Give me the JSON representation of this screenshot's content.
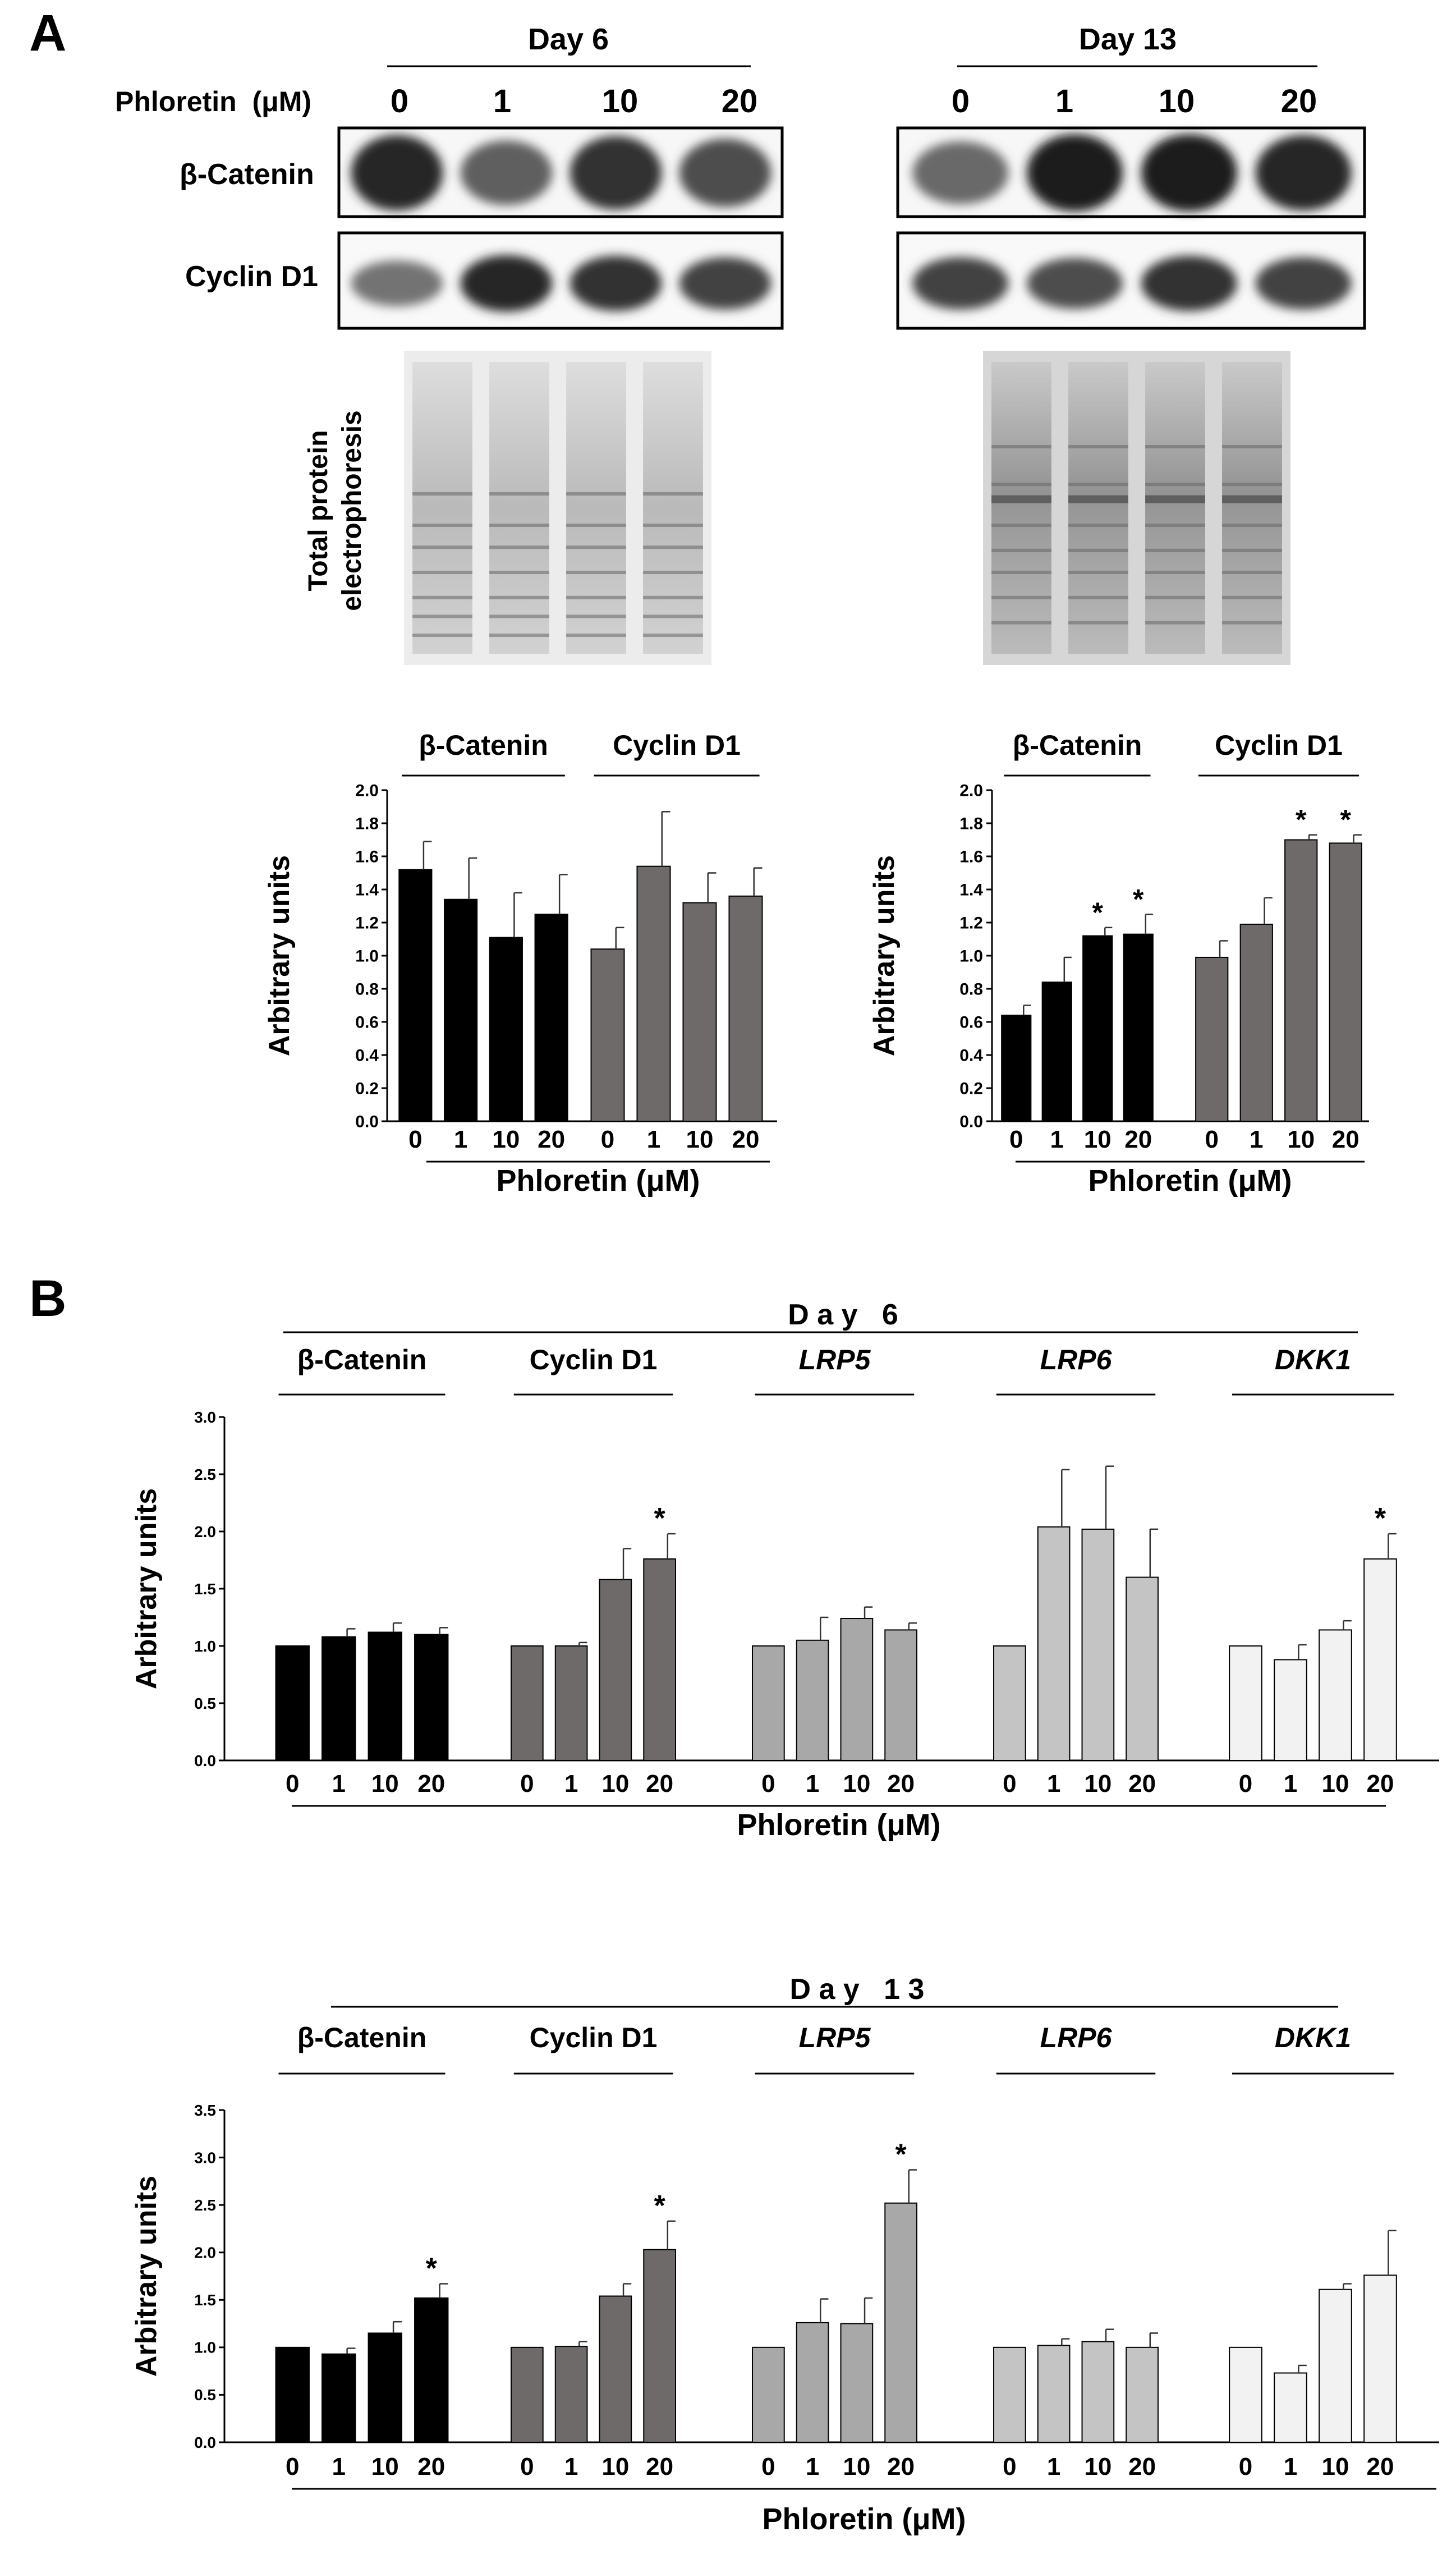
{
  "panel_a_label": "A",
  "panel_b_label": "B",
  "blots": {
    "day6_label": "Day 6",
    "day13_label": "Day 13",
    "treatment_label": "Phloretin  (μM)",
    "doses": [
      "0",
      "1",
      "10",
      "20"
    ],
    "rows": [
      "β-Catenin",
      "Cyclin D1"
    ],
    "tpe_label_line1": "Total protein",
    "tpe_label_line2": "electrophoresis",
    "band_intensity": {
      "day6": {
        "beta_catenin": [
          0.85,
          0.55,
          0.8,
          0.65
        ],
        "cyclin_d1": [
          0.45,
          0.85,
          0.8,
          0.7
        ]
      },
      "day13": {
        "beta_catenin": [
          0.5,
          0.9,
          0.9,
          0.85
        ],
        "cyclin_d1": [
          0.7,
          0.65,
          0.8,
          0.7
        ]
      }
    }
  },
  "colors": {
    "beta_catenin": "#000000",
    "cyclin_d1": "#6e6a69",
    "lrp5": "#a8a8a8",
    "lrp6": "#c4c4c4",
    "dkk1": "#f2f2f2"
  },
  "chart_data": [
    {
      "id": "a_day6",
      "type": "bar",
      "ylabel": "Arbitrary units",
      "xlabel": "Phloretin (μM)",
      "ylim": [
        0,
        2.0
      ],
      "yticks": [
        "0.0",
        "0.2",
        "0.4",
        "0.6",
        "0.8",
        "1.0",
        "1.2",
        "1.4",
        "1.6",
        "1.8",
        "2.0"
      ],
      "categories": [
        "0",
        "1",
        "10",
        "20"
      ],
      "series": [
        {
          "name": "β-Catenin",
          "color_key": "beta_catenin",
          "values": [
            1.52,
            1.34,
            1.11,
            1.25
          ],
          "errors": [
            0.17,
            0.25,
            0.27,
            0.24
          ],
          "sig": [
            "",
            "",
            "",
            ""
          ]
        },
        {
          "name": "Cyclin D1",
          "color_key": "cyclin_d1",
          "values": [
            1.04,
            1.54,
            1.32,
            1.36
          ],
          "errors": [
            0.13,
            0.33,
            0.18,
            0.17
          ],
          "sig": [
            "",
            "",
            "",
            ""
          ]
        }
      ]
    },
    {
      "id": "a_day13",
      "type": "bar",
      "ylabel": "Arbitrary units",
      "xlabel": "Phloretin (μM)",
      "ylim": [
        0,
        2.0
      ],
      "yticks": [
        "0.0",
        "0.2",
        "0.4",
        "0.6",
        "0.8",
        "1.0",
        "1.2",
        "1.4",
        "1.6",
        "1.8",
        "2.0"
      ],
      "categories": [
        "0",
        "1",
        "10",
        "20"
      ],
      "series": [
        {
          "name": "β-Catenin",
          "color_key": "beta_catenin",
          "values": [
            0.64,
            0.84,
            1.12,
            1.13
          ],
          "errors": [
            0.06,
            0.15,
            0.05,
            0.12
          ],
          "sig": [
            "",
            "",
            "*",
            "*"
          ]
        },
        {
          "name": "Cyclin D1",
          "color_key": "cyclin_d1",
          "values": [
            0.99,
            1.19,
            1.7,
            1.68
          ],
          "errors": [
            0.1,
            0.16,
            0.03,
            0.05
          ],
          "sig": [
            "",
            "",
            "*",
            "*"
          ]
        }
      ]
    },
    {
      "id": "b_day6",
      "type": "bar",
      "title": "D a y   6",
      "ylabel": "Arbitrary units",
      "xlabel": "Phloretin (μM)",
      "ylim": [
        0,
        3.0
      ],
      "yticks": [
        "0.0",
        "0.5",
        "1.0",
        "1.5",
        "2.0",
        "2.5",
        "3.0"
      ],
      "categories": [
        "0",
        "1",
        "10",
        "20"
      ],
      "series": [
        {
          "name": "β-Catenin",
          "italic": false,
          "color_key": "beta_catenin",
          "values": [
            1.0,
            1.08,
            1.12,
            1.1
          ],
          "errors": [
            0,
            0.07,
            0.08,
            0.06
          ],
          "sig": [
            "",
            "",
            "",
            ""
          ]
        },
        {
          "name": "Cyclin D1",
          "italic": false,
          "color_key": "cyclin_d1",
          "values": [
            1.0,
            1.0,
            1.58,
            1.76
          ],
          "errors": [
            0,
            0.03,
            0.27,
            0.22
          ],
          "sig": [
            "",
            "",
            "",
            "*"
          ]
        },
        {
          "name": "LRP5",
          "italic": true,
          "color_key": "lrp5",
          "values": [
            1.0,
            1.05,
            1.24,
            1.14
          ],
          "errors": [
            0,
            0.2,
            0.1,
            0.06
          ],
          "sig": [
            "",
            "",
            "",
            ""
          ]
        },
        {
          "name": "LRP6",
          "italic": true,
          "color_key": "lrp6",
          "values": [
            1.0,
            2.04,
            2.02,
            1.6
          ],
          "errors": [
            0,
            0.5,
            0.55,
            0.42
          ],
          "sig": [
            "",
            "",
            "",
            ""
          ]
        },
        {
          "name": "DKK1",
          "italic": true,
          "color_key": "dkk1",
          "values": [
            1.0,
            0.88,
            1.14,
            1.76
          ],
          "errors": [
            0,
            0.13,
            0.08,
            0.22
          ],
          "sig": [
            "",
            "",
            "",
            "*"
          ]
        }
      ]
    },
    {
      "id": "b_day13",
      "type": "bar",
      "title": "D a y   1 3",
      "ylabel": "Arbitrary units",
      "xlabel": "Phloretin (μM)",
      "ylim": [
        0,
        3.5
      ],
      "yticks": [
        "0.0",
        "0.5",
        "1.0",
        "1.5",
        "2.0",
        "2.5",
        "3.0",
        "3.5"
      ],
      "categories": [
        "0",
        "1",
        "10",
        "20"
      ],
      "series": [
        {
          "name": "β-Catenin",
          "italic": false,
          "color_key": "beta_catenin",
          "values": [
            1.0,
            0.93,
            1.15,
            1.52
          ],
          "errors": [
            0,
            0.06,
            0.12,
            0.15
          ],
          "sig": [
            "",
            "",
            "",
            "*"
          ]
        },
        {
          "name": "Cyclin D1",
          "italic": false,
          "color_key": "cyclin_d1",
          "values": [
            1.0,
            1.01,
            1.54,
            2.03
          ],
          "errors": [
            0,
            0.05,
            0.13,
            0.3
          ],
          "sig": [
            "",
            "",
            "",
            "*"
          ]
        },
        {
          "name": "LRP5",
          "italic": true,
          "color_key": "lrp5",
          "values": [
            1.0,
            1.26,
            1.25,
            2.52
          ],
          "errors": [
            0,
            0.25,
            0.27,
            0.35
          ],
          "sig": [
            "",
            "",
            "",
            "*"
          ]
        },
        {
          "name": "LRP6",
          "italic": true,
          "color_key": "lrp6",
          "values": [
            1.0,
            1.02,
            1.06,
            1.0
          ],
          "errors": [
            0,
            0.07,
            0.13,
            0.15
          ],
          "sig": [
            "",
            "",
            "",
            ""
          ]
        },
        {
          "name": "DKK1",
          "italic": true,
          "color_key": "dkk1",
          "values": [
            1.0,
            0.73,
            1.61,
            1.76
          ],
          "errors": [
            0,
            0.08,
            0.06,
            0.47
          ],
          "sig": [
            "",
            "",
            "",
            ""
          ]
        }
      ]
    }
  ]
}
